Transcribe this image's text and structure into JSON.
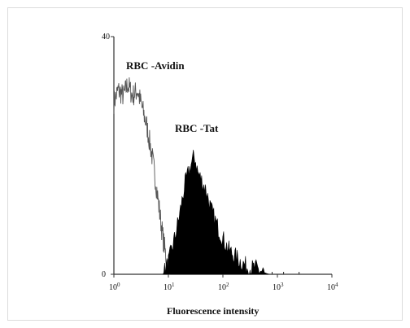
{
  "chart_data": {
    "type": "area",
    "title": "",
    "xlabel": "Fluorescence intensity",
    "ylabel": "",
    "x_scale": "log",
    "xlim": [
      1,
      10000
    ],
    "ylim": [
      0,
      40
    ],
    "x_ticks": [
      {
        "base": "10",
        "exp": "0",
        "value": 1
      },
      {
        "base": "10",
        "exp": "1",
        "value": 10
      },
      {
        "base": "10",
        "exp": "2",
        "value": 100
      },
      {
        "base": "10",
        "exp": "3",
        "value": 1000
      },
      {
        "base": "10",
        "exp": "4",
        "value": 10000
      }
    ],
    "y_ticks": [
      "0",
      "40"
    ],
    "grid": false,
    "series": [
      {
        "name": "RBC -Avidin",
        "style": "outline",
        "color": "#555555",
        "x": [
          1.0,
          1.2,
          1.5,
          1.8,
          2.2,
          2.7,
          3.3,
          4.0,
          5.0,
          6.0,
          7.0,
          8.0,
          9.0,
          10.0,
          11.0
        ],
        "y": [
          29,
          31,
          30,
          32,
          30,
          31,
          28,
          25,
          20,
          15,
          10,
          6,
          3,
          1,
          0
        ]
      },
      {
        "name": "RBC -Tat",
        "style": "filled",
        "color": "#000000",
        "x": [
          8,
          10,
          13,
          16,
          20,
          25,
          30,
          35,
          40,
          50,
          60,
          80,
          100,
          130,
          170,
          220,
          300,
          400,
          500,
          700
        ],
        "y": [
          0,
          2,
          6,
          10,
          15,
          18,
          20,
          17,
          16,
          14,
          11,
          8,
          6,
          4,
          3,
          2,
          1,
          1,
          0.5,
          0
        ]
      }
    ]
  }
}
